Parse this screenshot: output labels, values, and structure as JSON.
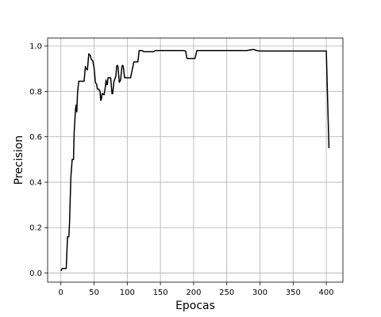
{
  "chart_data": {
    "type": "line",
    "title": "",
    "xlabel": "Epocas",
    "ylabel": "Precision",
    "xlim": [
      -20,
      425
    ],
    "ylim": [
      -0.04,
      1.035
    ],
    "grid": true,
    "legend": "none",
    "x_ticks": [
      0,
      50,
      100,
      150,
      200,
      250,
      300,
      350,
      400
    ],
    "x_tick_labels": [
      "0",
      "50",
      "100",
      "150",
      "200",
      "250",
      "300",
      "350",
      "400"
    ],
    "y_ticks": [
      0.0,
      0.2,
      0.4,
      0.6,
      0.8,
      1.0
    ],
    "y_tick_labels": [
      "0.0",
      "0.2",
      "0.4",
      "0.6",
      "0.8",
      "1.0"
    ],
    "series": [
      {
        "color": "#000000",
        "x": [
          0,
          2,
          8,
          9,
          10,
          12,
          13,
          14,
          15,
          17,
          19,
          20,
          22,
          23,
          24,
          25,
          26,
          27,
          30,
          35,
          36,
          37,
          38,
          40,
          42,
          44,
          46,
          48,
          50,
          52,
          54,
          55,
          57,
          59,
          60,
          61,
          62,
          63,
          65,
          66,
          67,
          68,
          69,
          70,
          71,
          72,
          75,
          77,
          78,
          80,
          82,
          83,
          84,
          85,
          86,
          88,
          90,
          92,
          93,
          94,
          96,
          97,
          99,
          100,
          105,
          110,
          112,
          116,
          118,
          120,
          122,
          125,
          140,
          142,
          148,
          150,
          185,
          188,
          190,
          202,
          205,
          210,
          220,
          230,
          240,
          250,
          260,
          270,
          280,
          290,
          295,
          300,
          310,
          320,
          350,
          380,
          400,
          402,
          404
        ],
        "y": [
          0.01,
          0.02,
          0.02,
          0.09,
          0.16,
          0.16,
          0.22,
          0.32,
          0.42,
          0.5,
          0.5,
          0.62,
          0.72,
          0.74,
          0.71,
          0.79,
          0.82,
          0.845,
          0.845,
          0.845,
          0.88,
          0.91,
          0.9,
          0.895,
          0.965,
          0.96,
          0.94,
          0.935,
          0.905,
          0.84,
          0.83,
          0.81,
          0.81,
          0.8,
          0.76,
          0.765,
          0.79,
          0.79,
          0.785,
          0.8,
          0.82,
          0.85,
          0.83,
          0.83,
          0.86,
          0.86,
          0.86,
          0.79,
          0.79,
          0.845,
          0.86,
          0.87,
          0.91,
          0.915,
          0.91,
          0.84,
          0.85,
          0.91,
          0.915,
          0.91,
          0.86,
          0.86,
          0.86,
          0.86,
          0.86,
          0.93,
          0.93,
          0.93,
          0.98,
          0.98,
          0.98,
          0.975,
          0.975,
          0.98,
          0.98,
          0.98,
          0.98,
          0.978,
          0.945,
          0.945,
          0.98,
          0.98,
          0.98,
          0.98,
          0.98,
          0.98,
          0.98,
          0.98,
          0.98,
          0.985,
          0.98,
          0.978,
          0.978,
          0.978,
          0.978,
          0.978,
          0.978,
          0.76,
          0.55
        ]
      }
    ]
  }
}
